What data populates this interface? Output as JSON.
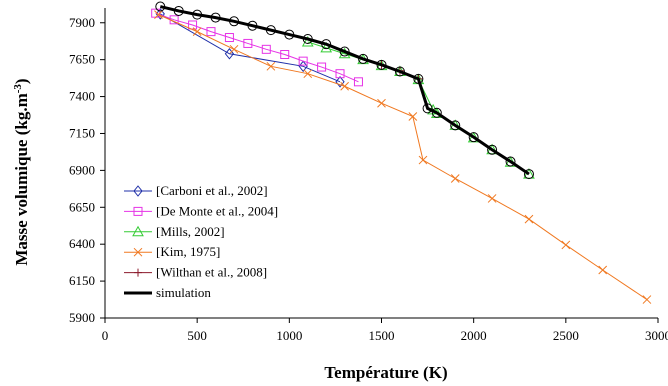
{
  "chart_data": {
    "type": "line",
    "xlabel": "Température (K)",
    "ylabel_main": "Masse volumique (kg.m",
    "ylabel_sup": "-3",
    "ylabel_close": ")",
    "xlim": [
      0,
      3000
    ],
    "ylim": [
      5900,
      8000
    ],
    "xticks": [
      0,
      500,
      1000,
      1500,
      2000,
      2500,
      3000
    ],
    "yticks": [
      5900,
      6150,
      6400,
      6650,
      6900,
      7150,
      7400,
      7650,
      7900
    ],
    "grid": false,
    "legend_position": "bottom-left",
    "series": [
      {
        "name": "[Carboni et al., 2002]",
        "color": "#1f2fa8",
        "marker": "diamond",
        "x": [
          300,
          675,
          1075,
          1275
        ],
        "y": [
          7960,
          7690,
          7605,
          7500
        ]
      },
      {
        "name": "[De Monte et al., 2004]",
        "color": "#e633e6",
        "marker": "square",
        "x": [
          275,
          375,
          475,
          575,
          675,
          775,
          875,
          975,
          1075,
          1175,
          1275,
          1375
        ],
        "y": [
          7965,
          7920,
          7885,
          7840,
          7800,
          7760,
          7720,
          7685,
          7640,
          7600,
          7555,
          7500
        ]
      },
      {
        "name": "[Mills, 2002]",
        "color": "#33cc33",
        "marker": "triangle",
        "x": [
          1100,
          1200,
          1300,
          1400,
          1500,
          1600,
          1700,
          1780,
          1800,
          1900,
          2000,
          2100,
          2200,
          2300
        ],
        "y": [
          7770,
          7730,
          7690,
          7650,
          7610,
          7570,
          7515,
          7310,
          7285,
          7205,
          7120,
          7040,
          6955,
          6875
        ]
      },
      {
        "name": "[Kim, 1975]",
        "color": "#f07820",
        "marker": "cross",
        "x": [
          290,
          500,
          700,
          900,
          1100,
          1300,
          1500,
          1670,
          1725,
          1900,
          2100,
          2300,
          2500,
          2700,
          2940
        ],
        "y": [
          7955,
          7840,
          7720,
          7605,
          7555,
          7470,
          7355,
          7265,
          6970,
          6845,
          6710,
          6570,
          6395,
          6225,
          6025
        ]
      },
      {
        "name": "[Wilthan et al., 2008]",
        "color": "#8b1a2b",
        "marker": "plus",
        "x": [
          1500,
          1600,
          1700
        ],
        "y": [
          7615,
          7575,
          7520
        ]
      },
      {
        "name": "simulation",
        "color": "#000000",
        "marker": "circle",
        "x": [
          300,
          400,
          500,
          600,
          700,
          800,
          900,
          1000,
          1100,
          1200,
          1300,
          1400,
          1500,
          1600,
          1700,
          1750,
          1800,
          1900,
          2000,
          2100,
          2200,
          2300
        ],
        "y": [
          8010,
          7980,
          7955,
          7935,
          7910,
          7880,
          7850,
          7820,
          7790,
          7755,
          7705,
          7655,
          7615,
          7570,
          7520,
          7320,
          7290,
          7205,
          7125,
          7040,
          6960,
          6875
        ]
      }
    ]
  }
}
